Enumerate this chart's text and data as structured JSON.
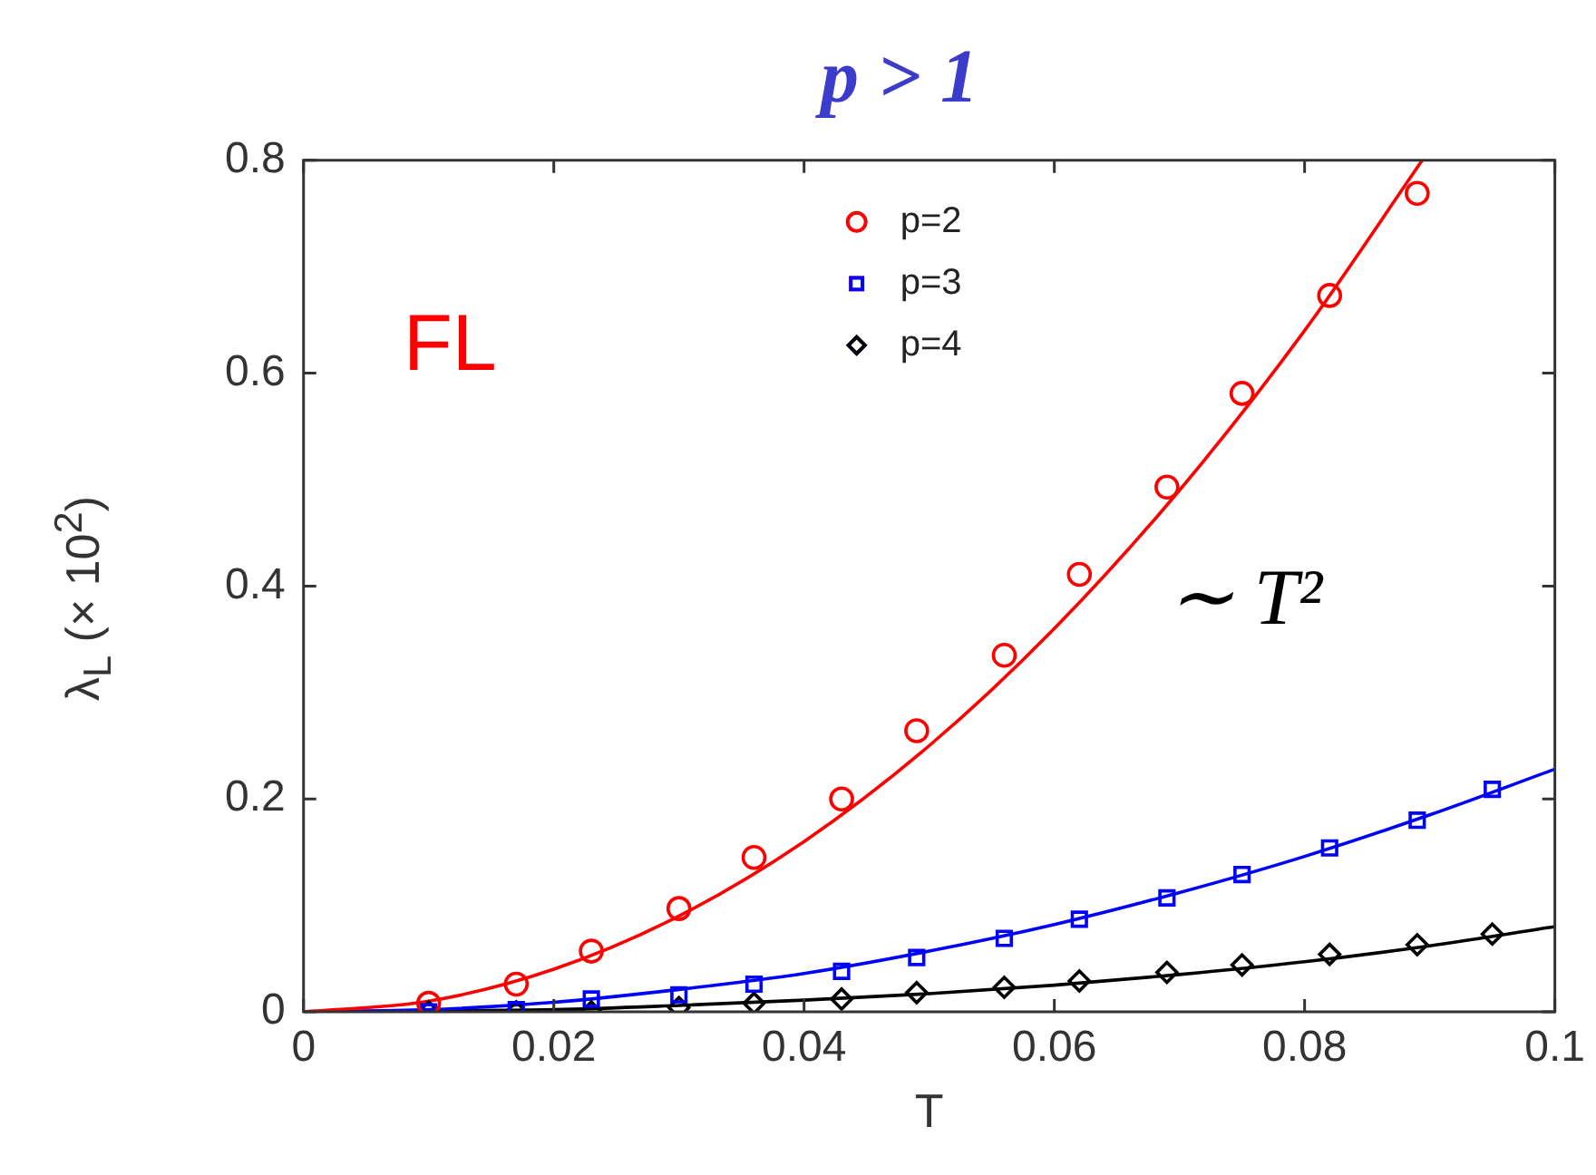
{
  "chart_data": {
    "type": "scatter",
    "title": "p > 1",
    "xlabel": "T",
    "ylabel": "λ$_{L}$ (× 10$^{2}$)",
    "annotations": [
      "FL",
      "∼ T²"
    ],
    "xlim": [
      0,
      0.1
    ],
    "xticks": [
      0,
      0.02,
      0.04,
      0.06,
      0.08,
      0.1
    ],
    "ylim": [
      0,
      0.8
    ],
    "yticks": [
      0,
      0.2,
      0.4,
      0.6,
      0.8
    ],
    "grid": false,
    "legend": "top",
    "series": [
      {
        "name": "p=2",
        "color": "#ff0000",
        "marker": "circle",
        "x": [
          0.01,
          0.017,
          0.023,
          0.03,
          0.036,
          0.043,
          0.049,
          0.056,
          0.062,
          0.069,
          0.075,
          0.082,
          0.089
        ],
        "values": [
          0.008,
          0.026,
          0.057,
          0.097,
          0.145,
          0.2,
          0.264,
          0.335,
          0.411,
          0.493,
          0.581,
          0.673,
          0.769
        ]
      },
      {
        "name": "p=3",
        "color": "#0000ff",
        "marker": "square",
        "x": [
          0.01,
          0.017,
          0.023,
          0.03,
          0.036,
          0.043,
          0.049,
          0.056,
          0.062,
          0.069,
          0.075,
          0.082,
          0.089,
          0.095
        ],
        "values": [
          0,
          0.002,
          0.012,
          0.016,
          0.026,
          0.038,
          0.051,
          0.069,
          0.087,
          0.107,
          0.129,
          0.154,
          0.18,
          0.209
        ]
      },
      {
        "name": "p=4",
        "color": "#000000",
        "marker": "diamond",
        "x": [
          0.01,
          0.017,
          0.023,
          0.03,
          0.036,
          0.043,
          0.049,
          0.056,
          0.062,
          0.069,
          0.075,
          0.082,
          0.089,
          0.095
        ],
        "values": [
          0,
          0,
          0,
          0.004,
          0.008,
          0.012,
          0.018,
          0.023,
          0.029,
          0.037,
          0.044,
          0.054,
          0.063,
          0.073
        ]
      },
      {
        "type": "line",
        "color": "#ff0000",
        "marker": "none",
        "x": [
          0,
          0.01,
          0.02,
          0.03,
          0.04,
          0.05,
          0.06,
          0.07,
          0.08,
          0.0894
        ],
        "values": [
          0,
          0.01,
          0.04,
          0.09,
          0.16,
          0.25,
          0.36,
          0.49,
          0.64,
          0.8
        ]
      },
      {
        "type": "line",
        "color": "#0000ff",
        "marker": "none",
        "x": [
          0,
          0.01,
          0.02,
          0.03,
          0.04,
          0.05,
          0.06,
          0.07,
          0.08,
          0.09,
          0.1
        ],
        "values": [
          0,
          0.002,
          0.009,
          0.021,
          0.036,
          0.057,
          0.082,
          0.112,
          0.146,
          0.185,
          0.228
        ]
      },
      {
        "type": "line",
        "color": "#000000",
        "marker": "none",
        "x": [
          0,
          0.01,
          0.02,
          0.03,
          0.04,
          0.05,
          0.06,
          0.07,
          0.08,
          0.09,
          0.1
        ],
        "values": [
          0,
          0.001,
          0.002,
          0.006,
          0.011,
          0.017,
          0.025,
          0.035,
          0.047,
          0.062,
          0.08
        ]
      }
    ]
  }
}
